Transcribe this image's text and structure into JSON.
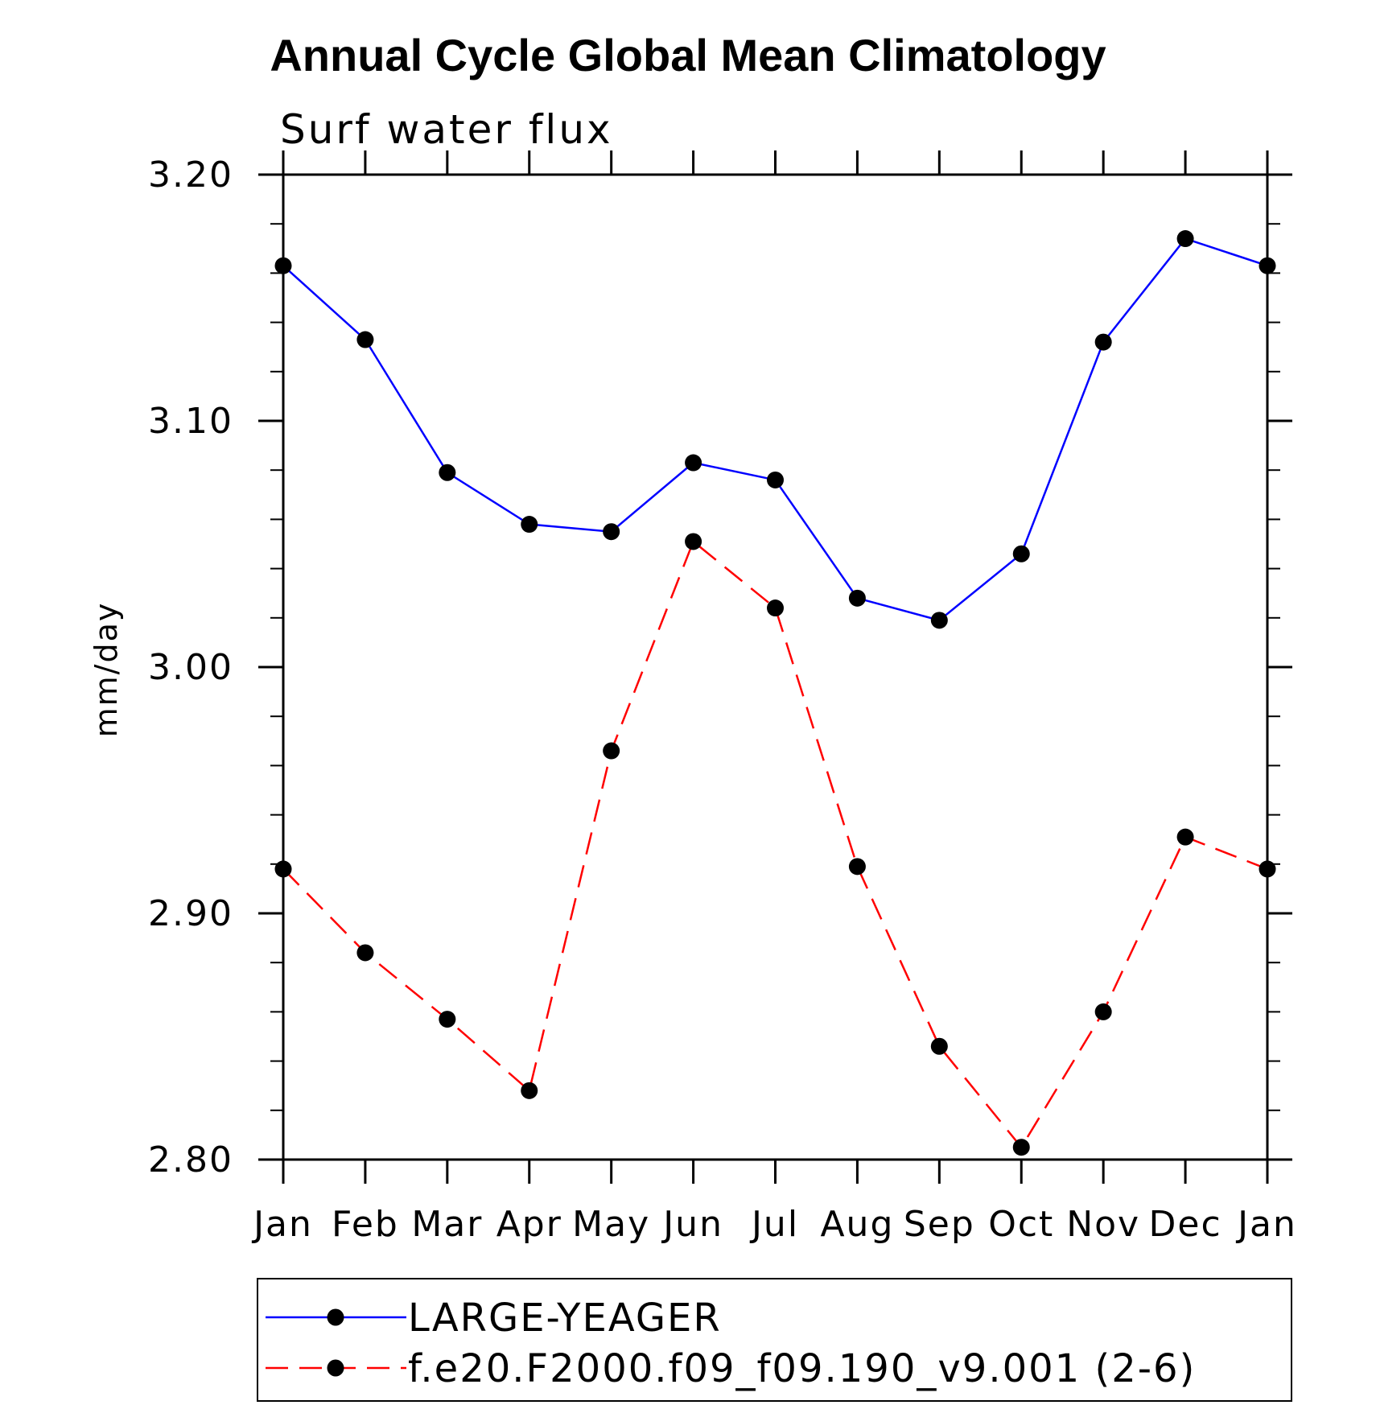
{
  "chart_data": {
    "type": "line",
    "title": "Annual Cycle Global Mean Climatology",
    "subtitle": "Surf water flux",
    "xlabel": "",
    "ylabel": "mm/day",
    "ylim": [
      2.8,
      3.2
    ],
    "yticks": [
      "3.20",
      "3.10",
      "3.00",
      "2.90",
      "2.80"
    ],
    "categories": [
      "Jan",
      "Feb",
      "Mar",
      "Apr",
      "May",
      "Jun",
      "Jul",
      "Aug",
      "Sep",
      "Oct",
      "Nov",
      "Dec",
      "Jan"
    ],
    "series": [
      {
        "name": "LARGE-YEAGER",
        "color": "#0000ff",
        "dash": "solid",
        "values": [
          3.163,
          3.133,
          3.079,
          3.058,
          3.055,
          3.083,
          3.076,
          3.028,
          3.019,
          3.046,
          3.132,
          3.174,
          3.163
        ]
      },
      {
        "name": "f.e20.F2000.f09_f09.190_v9.001 (2-6)",
        "color": "#ff0000",
        "dash": "dashed",
        "values": [
          2.918,
          2.884,
          2.857,
          2.828,
          2.966,
          3.051,
          3.024,
          2.919,
          2.846,
          2.805,
          2.86,
          2.931,
          2.918
        ]
      }
    ],
    "grid": false,
    "legend_position": "bottom"
  }
}
